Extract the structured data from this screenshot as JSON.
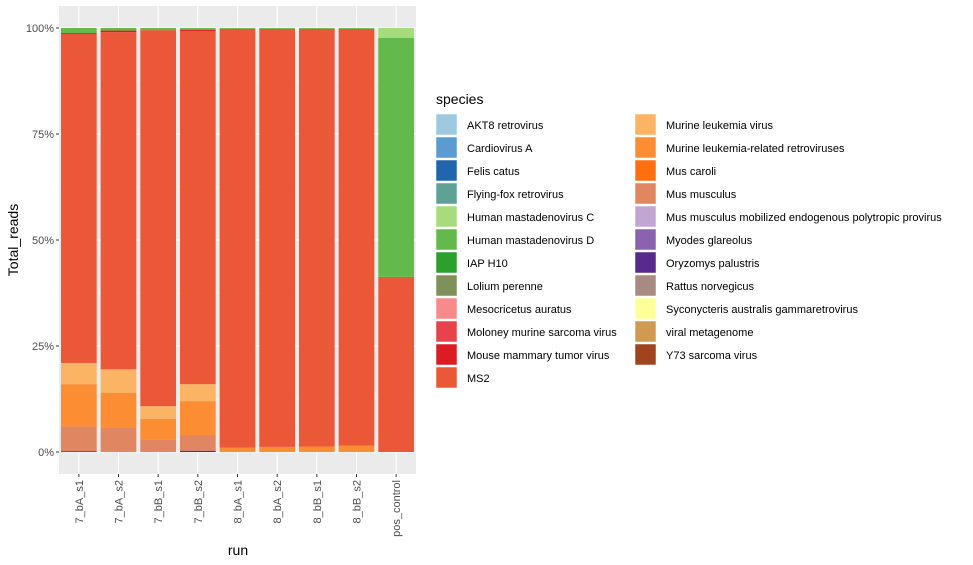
{
  "chart_data": {
    "type": "bar",
    "stacked": true,
    "position": "fill",
    "xlabel": "run",
    "ylabel": "Total_reads",
    "ylim": [
      0,
      1
    ],
    "y_ticks": [
      {
        "value": 0,
        "label": "0%"
      },
      {
        "value": 0.25,
        "label": "25%"
      },
      {
        "value": 0.5,
        "label": "50%"
      },
      {
        "value": 0.75,
        "label": "75%"
      },
      {
        "value": 1,
        "label": "100%"
      }
    ],
    "grid": true,
    "legend_title": "species",
    "legend_position": "right",
    "categories": [
      "7_bA_s1",
      "7_bA_s2",
      "7_bB_s1",
      "7_bB_s2",
      "8_bA_s1",
      "8_bA_s2",
      "8_bB_s1",
      "8_bB_s2",
      "pos_control"
    ],
    "species": [
      {
        "name": "AKT8 retrovirus",
        "color": "#9ecae1"
      },
      {
        "name": "Cardiovirus A",
        "color": "#5b9bd0"
      },
      {
        "name": "Felis catus",
        "color": "#2166ac"
      },
      {
        "name": "Flying-fox retrovirus",
        "color": "#5fa295"
      },
      {
        "name": "Human mastadenovirus C",
        "color": "#a6dc7e"
      },
      {
        "name": "Human mastadenovirus D",
        "color": "#63b94a"
      },
      {
        "name": "IAP H10",
        "color": "#2c9f2c"
      },
      {
        "name": "Lolium perenne",
        "color": "#7f9159"
      },
      {
        "name": "Mesocricetus auratus",
        "color": "#f78b8b"
      },
      {
        "name": "Moloney murine sarcoma virus",
        "color": "#e8434b"
      },
      {
        "name": "Mouse mammary tumor virus",
        "color": "#dc1c24"
      },
      {
        "name": "MS2",
        "color": "#eb5838"
      },
      {
        "name": "Murine leukemia virus",
        "color": "#fbb463"
      },
      {
        "name": "Murine leukemia-related retroviruses",
        "color": "#fd8d33"
      },
      {
        "name": "Mus caroli",
        "color": "#ff6f0f"
      },
      {
        "name": "Mus musculus",
        "color": "#e08660"
      },
      {
        "name": "Mus musculus mobilized endogenous polytropic provirus",
        "color": "#c2a5d0"
      },
      {
        "name": "Myodes glareolus",
        "color": "#8b62ae"
      },
      {
        "name": "Oryzomys palustris",
        "color": "#582a8b"
      },
      {
        "name": "Rattus norvegicus",
        "color": "#a98a82"
      },
      {
        "name": "Syconycteris australis gammaretrovirus",
        "color": "#ffff99"
      },
      {
        "name": "viral metagenome",
        "color": "#d09b50"
      },
      {
        "name": "Y73 sarcoma virus",
        "color": "#a0441f"
      }
    ],
    "bars": [
      {
        "run": "7_bA_s1",
        "segments": [
          {
            "species": "Oryzomys palustris",
            "value": 0.002
          },
          {
            "species": "Mus musculus",
            "value": 0.058
          },
          {
            "species": "Murine leukemia-related retroviruses",
            "value": 0.1
          },
          {
            "species": "Murine leukemia virus",
            "value": 0.05
          },
          {
            "species": "MS2",
            "value": 0.775
          },
          {
            "species": "Mouse mammary tumor virus",
            "value": 0.003
          },
          {
            "species": "Human mastadenovirus D",
            "value": 0.012
          }
        ]
      },
      {
        "run": "7_bA_s2",
        "segments": [
          {
            "species": "Mus musculus",
            "value": 0.058
          },
          {
            "species": "Murine leukemia-related retroviruses",
            "value": 0.082
          },
          {
            "species": "Murine leukemia virus",
            "value": 0.055
          },
          {
            "species": "MS2",
            "value": 0.795
          },
          {
            "species": "Mouse mammary tumor virus",
            "value": 0.004
          },
          {
            "species": "Human mastadenovirus D",
            "value": 0.006
          }
        ]
      },
      {
        "run": "7_bB_s1",
        "segments": [
          {
            "species": "Mus musculus",
            "value": 0.03
          },
          {
            "species": "Murine leukemia-related retroviruses",
            "value": 0.048
          },
          {
            "species": "Murine leukemia virus",
            "value": 0.03
          },
          {
            "species": "MS2",
            "value": 0.887
          },
          {
            "species": "Human mastadenovirus D",
            "value": 0.005
          }
        ]
      },
      {
        "run": "7_bB_s2",
        "segments": [
          {
            "species": "Oryzomys palustris",
            "value": 0.003
          },
          {
            "species": "Mus musculus",
            "value": 0.037
          },
          {
            "species": "Murine leukemia-related retroviruses",
            "value": 0.08
          },
          {
            "species": "Murine leukemia virus",
            "value": 0.04
          },
          {
            "species": "MS2",
            "value": 0.833
          },
          {
            "species": "Mouse mammary tumor virus",
            "value": 0.003
          },
          {
            "species": "Human mastadenovirus D",
            "value": 0.004
          }
        ]
      },
      {
        "run": "8_bA_s1",
        "segments": [
          {
            "species": "Murine leukemia-related retroviruses",
            "value": 0.01
          },
          {
            "species": "MS2",
            "value": 0.988
          },
          {
            "species": "Human mastadenovirus D",
            "value": 0.002
          }
        ]
      },
      {
        "run": "8_bA_s2",
        "segments": [
          {
            "species": "Murine leukemia-related retroviruses",
            "value": 0.012
          },
          {
            "species": "MS2",
            "value": 0.986
          },
          {
            "species": "Human mastadenovirus D",
            "value": 0.002
          }
        ]
      },
      {
        "run": "8_bB_s1",
        "segments": [
          {
            "species": "Murine leukemia-related retroviruses",
            "value": 0.013
          },
          {
            "species": "MS2",
            "value": 0.985
          },
          {
            "species": "Human mastadenovirus D",
            "value": 0.002
          }
        ]
      },
      {
        "run": "8_bB_s2",
        "segments": [
          {
            "species": "Murine leukemia-related retroviruses",
            "value": 0.015
          },
          {
            "species": "MS2",
            "value": 0.983
          },
          {
            "species": "Human mastadenovirus D",
            "value": 0.002
          }
        ]
      },
      {
        "run": "pos_control",
        "segments": [
          {
            "species": "MS2",
            "value": 0.413
          },
          {
            "species": "Human mastadenovirus D",
            "value": 0.564
          },
          {
            "species": "Human mastadenovirus C",
            "value": 0.023
          }
        ]
      }
    ]
  }
}
